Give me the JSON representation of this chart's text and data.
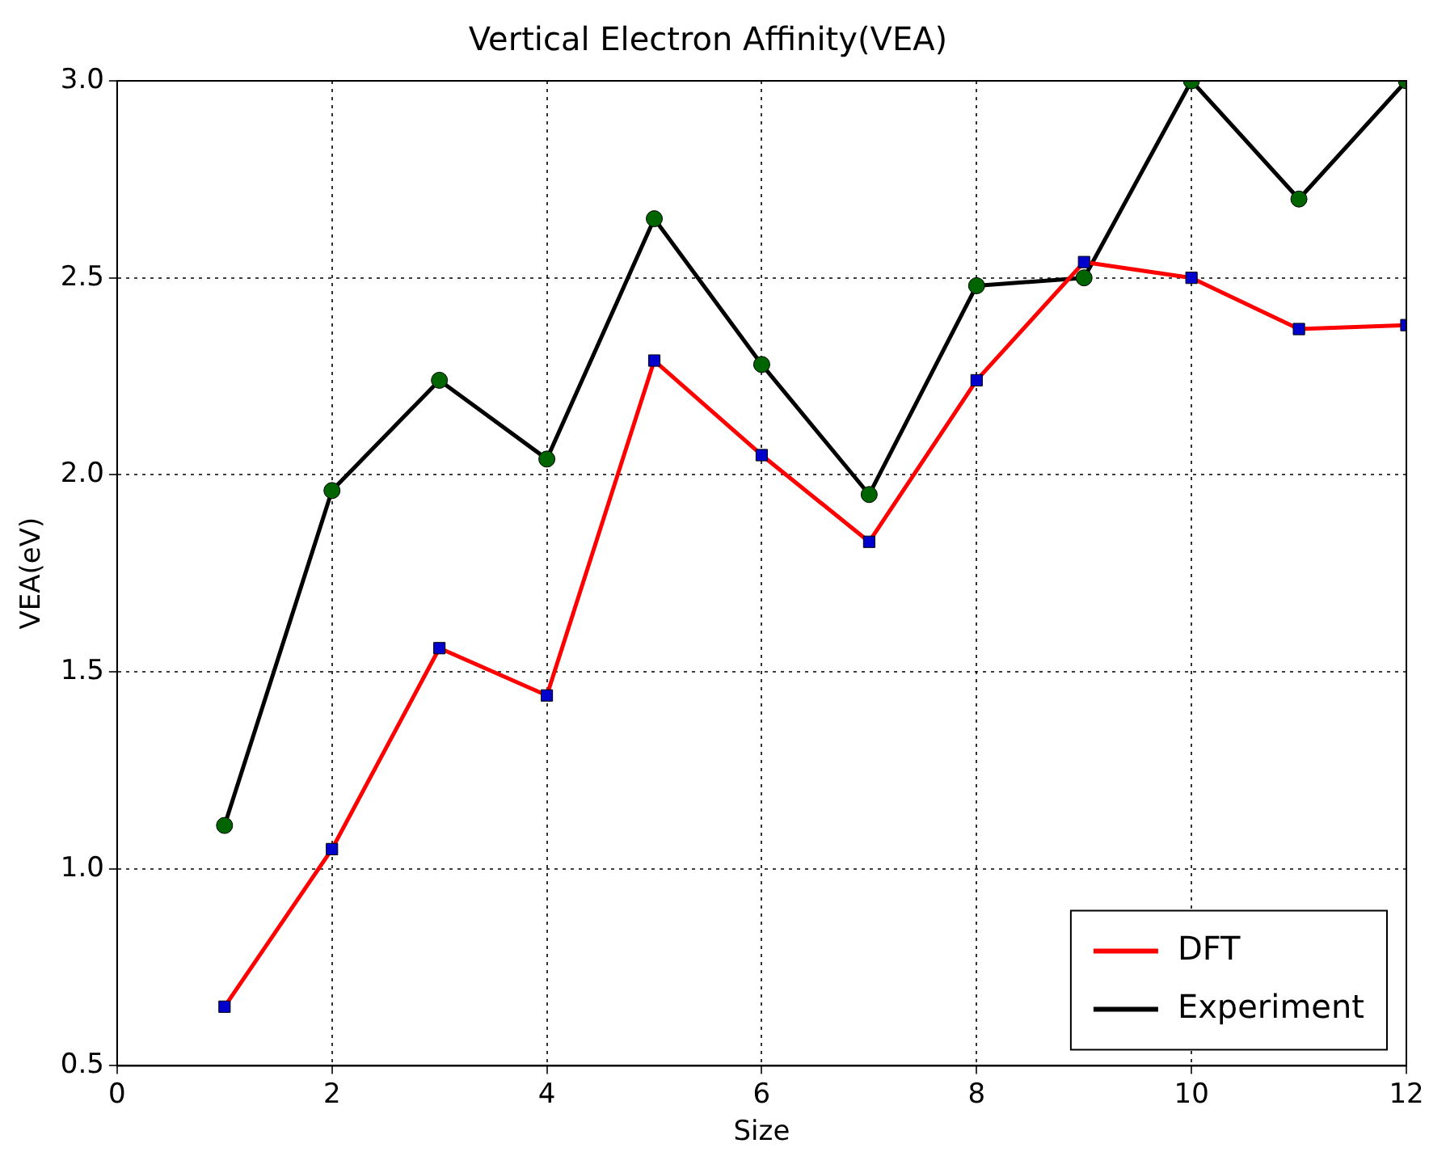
{
  "chart_data": {
    "type": "line",
    "title": "Vertical Electron Affinity(VEA)",
    "xlabel": "Size",
    "ylabel": "VEA(eV)",
    "x": [
      1,
      2,
      3,
      4,
      5,
      6,
      7,
      8,
      9,
      10,
      11,
      12
    ],
    "series": [
      {
        "name": "DFT",
        "color": "#ff0000",
        "marker": "square",
        "colors": [
          "#0000cc",
          "#0000cc",
          "#0000cc",
          "#0000cc",
          "#0000cc",
          "#0000cc",
          "#0000cc",
          "#0000cc",
          "#0000cc",
          "#0000cc",
          "#0000cc",
          "#0000cc"
        ],
        "values": [
          0.65,
          1.05,
          1.56,
          1.44,
          2.29,
          2.05,
          1.83,
          2.24,
          2.54,
          2.5,
          2.37,
          2.38
        ]
      },
      {
        "name": "Experiment",
        "color": "#000000",
        "marker": "circle",
        "colors": [
          "#006400",
          "#006400",
          "#006400",
          "#006400",
          "#006400",
          "#006400",
          "#006400",
          "#006400",
          "#006400",
          "#006400",
          "#006400",
          "#006400"
        ],
        "values": [
          1.11,
          1.96,
          2.24,
          2.04,
          2.65,
          2.28,
          1.95,
          2.48,
          2.5,
          3.0,
          2.7,
          3.0
        ]
      }
    ],
    "xlim": [
      0,
      12
    ],
    "xticks": [
      0,
      2,
      4,
      6,
      8,
      10,
      12
    ],
    "ylim": [
      0.5,
      3.0
    ],
    "yticks": [
      {
        "value": 0.5,
        "label": "0.5"
      },
      {
        "value": 1,
        "label": "1.0"
      },
      {
        "value": 1.5,
        "label": "1.5"
      },
      {
        "value": 2,
        "label": "2.0"
      },
      {
        "value": 2.5,
        "label": "2.5"
      },
      {
        "value": 3,
        "label": "3.0"
      }
    ],
    "grid": true,
    "legend": "bottom right",
    "line_style": "solid"
  }
}
